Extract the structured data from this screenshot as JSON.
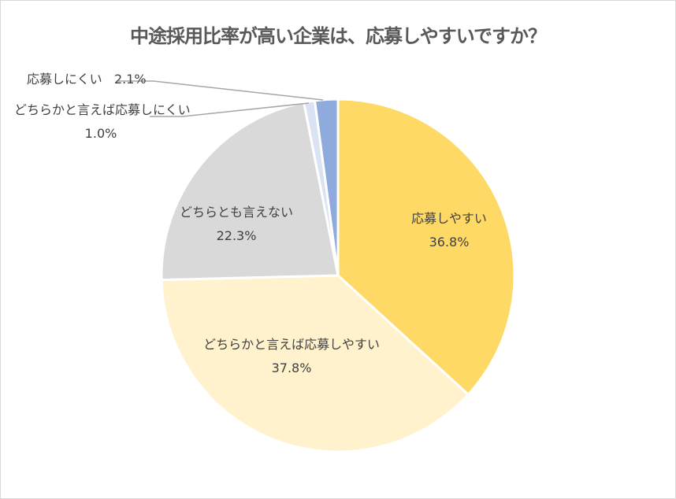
{
  "chart_data": {
    "type": "pie",
    "title": "中途採用比率が高い企業は、応募しやすいですか？",
    "categories": [
      "応募しやすい",
      "どちらかと言えば応募しやすい",
      "どちらとも言えない",
      "どちらかと言えば応募しにくい",
      "応募しにくい"
    ],
    "values": [
      36.8,
      37.8,
      22.3,
      1.0,
      2.1
    ],
    "colors": [
      "#FFD966",
      "#FFF2CC",
      "#D9D9D9",
      "#DAE3F3",
      "#8FAADC"
    ],
    "labels": [
      {
        "name": "応募しやすい",
        "value": "36.8%"
      },
      {
        "name": "どちらかと言えば応募しやすい",
        "value": "37.8%"
      },
      {
        "name": "どちらとも言えない",
        "value": "22.3%"
      },
      {
        "name": "どちらかと言えば応募しにくい",
        "value": "1.0%"
      },
      {
        "name": "応募しにくい",
        "value": "2.1%"
      }
    ],
    "start_angle": "top, clockwise",
    "legend": "none (data labels)"
  }
}
